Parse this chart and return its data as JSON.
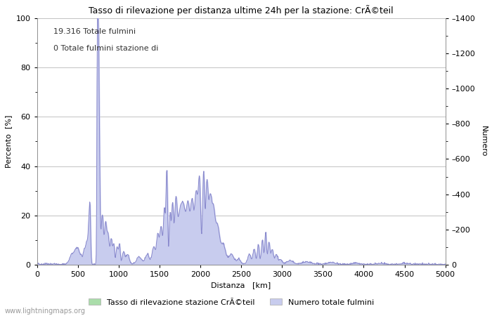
{
  "title": "Tasso di rilevazione per distanza ultime 24h per la stazione: CrÃ©teil",
  "xlabel": "Distanza   [km]",
  "ylabel_left": "Percento  [%]",
  "ylabel_right": "Numero",
  "annotation_line1": "19.316 Totale fulmini",
  "annotation_line2": "0 Totale fulmini stazione di",
  "legend_label1": "Tasso di rilevazione stazione CrÃ©teil",
  "legend_label2": "Numero totale fulmini",
  "watermark": "www.lightningmaps.org",
  "xlim": [
    0,
    5000
  ],
  "ylim_left": [
    0,
    100
  ],
  "ylim_right": [
    0,
    1400
  ],
  "yticks_left": [
    0,
    20,
    40,
    60,
    80,
    100
  ],
  "yticks_right": [
    0,
    200,
    400,
    600,
    800,
    1000,
    1200,
    1400
  ],
  "xticks": [
    0,
    500,
    1000,
    1500,
    2000,
    2500,
    3000,
    3500,
    4000,
    4500,
    5000
  ],
  "fill_color_green": "#aaddaa",
  "fill_color_blue": "#c8ccee",
  "line_color": "#8888cc",
  "bg_color": "#ffffff",
  "grid_color": "#aaaaaa"
}
